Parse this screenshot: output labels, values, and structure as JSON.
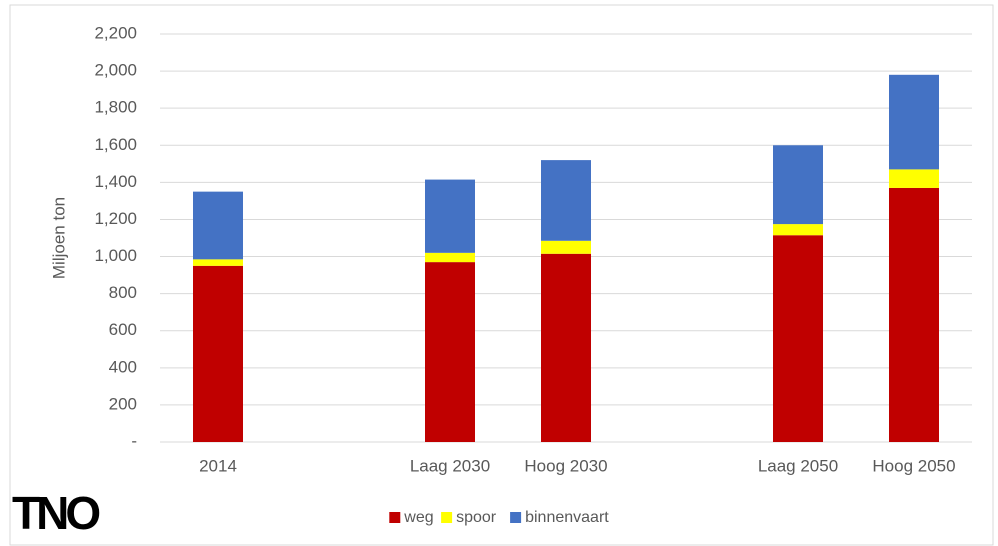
{
  "logo": "TNO",
  "chart_data": {
    "type": "stacked_bar",
    "y_label": "Miljoen ton",
    "categories": [
      "2014",
      null,
      "Laag 2030",
      "Hoog 2030",
      null,
      "Laag 2050",
      "Hoog 2050"
    ],
    "series": [
      {
        "name": "weg",
        "color": "#c00000",
        "values": [
          950,
          null,
          970,
          1015,
          null,
          1115,
          1370
        ]
      },
      {
        "name": "spoor",
        "color": "#ffff00",
        "values": [
          35,
          null,
          50,
          70,
          null,
          60,
          100
        ]
      },
      {
        "name": "binnenvaart",
        "color": "#4472c4",
        "values": [
          365,
          null,
          395,
          435,
          null,
          425,
          510
        ]
      }
    ],
    "ylim": [
      0,
      2200
    ],
    "yticks": [
      {
        "value": 0,
        "label": "-"
      },
      200,
      400,
      600,
      800,
      {
        "value": 1000,
        "label": "1,000"
      },
      {
        "value": 1200,
        "label": "1,200"
      },
      {
        "value": 1400,
        "label": "1,400"
      },
      {
        "value": 1600,
        "label": "1,600"
      },
      {
        "value": 1800,
        "label": "1,800"
      },
      {
        "value": 2000,
        "label": "2,000"
      },
      {
        "value": 2200,
        "label": "2,200"
      }
    ],
    "grid": true,
    "legend": "bottom"
  }
}
